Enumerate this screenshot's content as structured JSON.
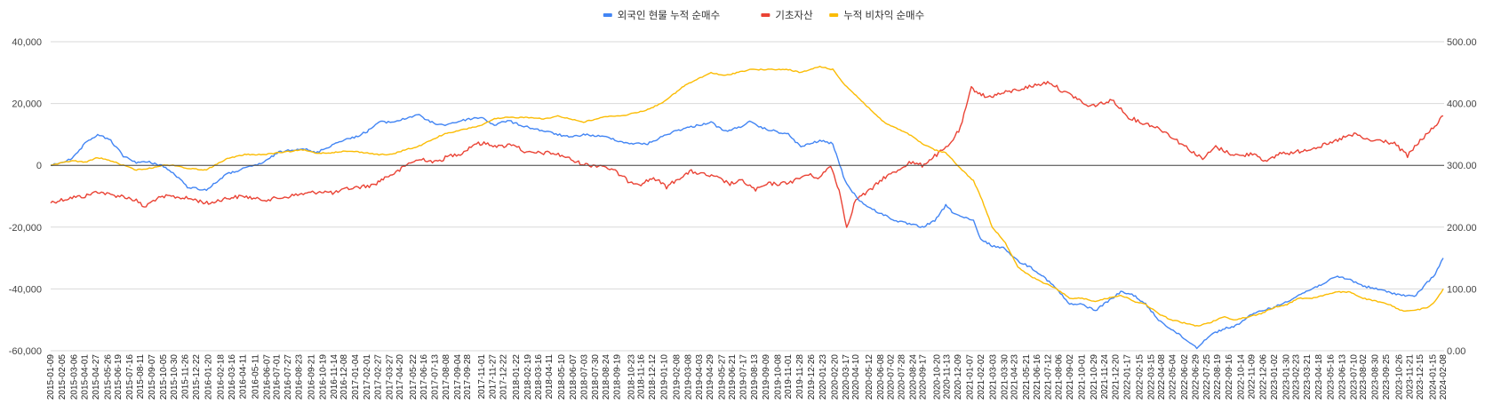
{
  "chart_data": {
    "type": "line",
    "legend_position": "top",
    "grid": true,
    "y_left": {
      "min": -60000,
      "max": 40000,
      "ticks": [
        "40,000",
        "20,000",
        "0",
        "-20,000",
        "-40,000",
        "-60,000"
      ]
    },
    "y_right": {
      "min": 0,
      "max": 500,
      "ticks": [
        "500.00",
        "400.00",
        "300.00",
        "200.00",
        "100.00",
        "0.00"
      ]
    },
    "x_tick_labels": [
      "2015-01-09",
      "2015-02-05",
      "2015-03-06",
      "2015-04-01",
      "2015-04-27",
      "2015-05-26",
      "2015-06-19",
      "2015-07-16",
      "2015-08-11",
      "2015-09-07",
      "2015-10-05",
      "2015-10-30",
      "2015-11-26",
      "2015-12-22",
      "2016-01-20",
      "2016-02-18",
      "2016-03-16",
      "2016-04-11",
      "2016-05-11",
      "2016-06-07",
      "2016-07-01",
      "2016-07-27",
      "2016-08-23",
      "2016-09-21",
      "2016-10-19",
      "2016-11-14",
      "2016-12-08",
      "2017-01-04",
      "2017-02-01",
      "2017-02-27",
      "2017-03-27",
      "2017-04-20",
      "2017-05-22",
      "2017-06-16",
      "2017-07-13",
      "2017-08-08",
      "2017-09-04",
      "2017-09-28",
      "2017-11-01",
      "2017-11-27",
      "2017-12-22",
      "2018-01-22",
      "2018-02-19",
      "2018-03-16",
      "2018-04-11",
      "2018-05-10",
      "2018-06-07",
      "2018-07-03",
      "2018-07-30",
      "2018-08-24",
      "2018-09-19",
      "2018-10-23",
      "2018-11-16",
      "2018-12-12",
      "2019-01-10",
      "2019-02-08",
      "2019-03-08",
      "2019-04-03",
      "2019-04-29",
      "2019-05-27",
      "2019-06-21",
      "2019-07-17",
      "2019-08-13",
      "2019-09-09",
      "2019-10-08",
      "2019-11-01",
      "2019-11-28",
      "2019-12-26",
      "2020-01-23",
      "2020-02-20",
      "2020-03-17",
      "2020-04-10",
      "2020-05-12",
      "2020-06-08",
      "2020-07-02",
      "2020-07-28",
      "2020-08-24",
      "2020-09-17",
      "2020-10-20",
      "2020-11-13",
      "2020-12-09",
      "2021-01-07",
      "2021-02-02",
      "2021-03-03",
      "2021-03-30",
      "2021-04-23",
      "2021-05-21",
      "2021-06-16",
      "2021-07-12",
      "2021-08-06",
      "2021-09-02",
      "2021-10-01",
      "2021-10-29",
      "2021-11-24",
      "2021-12-20",
      "2022-01-17",
      "2022-02-15",
      "2022-03-15",
      "2022-04-08",
      "2022-05-04",
      "2022-06-02",
      "2022-06-29",
      "2022-07-25",
      "2022-08-19",
      "2022-09-16",
      "2022-10-14",
      "2022-11-09",
      "2022-12-06",
      "2023-01-02",
      "2023-01-30",
      "2023-02-23",
      "2023-03-21",
      "2023-04-18",
      "2023-05-16",
      "2023-06-13",
      "2023-07-10",
      "2023-08-02",
      "2023-08-30",
      "2023-09-25",
      "2023-10-26",
      "2023-11-21",
      "2023-12-15",
      "2024-01-15",
      "2024-02-08"
    ],
    "series": [
      {
        "name": "외국인 현물 누적 순매수",
        "axis": "left",
        "color": "#4285f4",
        "x": [
          "2015-01-09",
          "2015-03-01",
          "2015-04-01",
          "2015-05-01",
          "2015-06-01",
          "2015-07-01",
          "2015-08-01",
          "2015-09-01",
          "2015-10-01",
          "2015-11-01",
          "2015-12-01",
          "2016-01-15",
          "2016-03-01",
          "2016-04-15",
          "2016-06-01",
          "2016-07-01",
          "2016-08-01",
          "2016-09-01",
          "2016-10-01",
          "2016-11-01",
          "2016-12-01",
          "2017-01-01",
          "2017-02-01",
          "2017-03-01",
          "2017-04-01",
          "2017-05-01",
          "2017-06-01",
          "2017-07-01",
          "2017-08-01",
          "2017-09-01",
          "2017-10-01",
          "2017-11-01",
          "2017-12-01",
          "2018-01-01",
          "2018-02-01",
          "2018-03-01",
          "2018-04-01",
          "2018-05-01",
          "2018-06-01",
          "2018-07-01",
          "2018-08-01",
          "2018-09-01",
          "2018-10-01",
          "2018-11-01",
          "2018-12-01",
          "2019-01-01",
          "2019-02-01",
          "2019-03-01",
          "2019-04-01",
          "2019-05-01",
          "2019-06-01",
          "2019-07-01",
          "2019-08-01",
          "2019-09-01",
          "2019-10-01",
          "2019-11-01",
          "2019-12-01",
          "2020-01-15",
          "2020-02-15",
          "2020-03-15",
          "2020-04-15",
          "2020-05-15",
          "2020-06-15",
          "2020-07-15",
          "2020-08-15",
          "2020-09-15",
          "2020-10-15",
          "2020-11-10",
          "2020-11-25",
          "2020-12-15",
          "2021-01-15",
          "2021-02-01",
          "2021-03-01",
          "2021-04-01",
          "2021-05-01",
          "2021-06-01",
          "2021-07-01",
          "2021-08-01",
          "2021-09-01",
          "2021-10-01",
          "2021-11-01",
          "2021-12-01",
          "2022-01-01",
          "2022-02-01",
          "2022-03-01",
          "2022-04-01",
          "2022-05-01",
          "2022-06-01",
          "2022-07-01",
          "2022-08-01",
          "2022-09-01",
          "2022-10-01",
          "2022-11-01",
          "2022-12-01",
          "2023-01-01",
          "2023-02-01",
          "2023-03-01",
          "2023-04-01",
          "2023-05-01",
          "2023-06-01",
          "2023-07-01",
          "2023-08-01",
          "2023-09-01",
          "2023-10-01",
          "2023-11-01",
          "2023-12-01",
          "2024-01-01",
          "2024-01-20",
          "2024-02-08"
        ],
        "y": [
          0,
          2000,
          7000,
          10000,
          8000,
          3000,
          1000,
          1000,
          0,
          -3000,
          -7000,
          -8000,
          -3000,
          -1000,
          1000,
          4000,
          5000,
          5500,
          4000,
          6000,
          8000,
          9000,
          11000,
          14000,
          14000,
          15000,
          16500,
          14000,
          13000,
          14000,
          15000,
          15500,
          13000,
          14500,
          13000,
          12000,
          11000,
          10000,
          9000,
          10000,
          9500,
          9000,
          7500,
          7000,
          7000,
          9000,
          11000,
          12000,
          13000,
          14000,
          11000,
          12000,
          14000,
          12000,
          11000,
          10000,
          6000,
          8000,
          7000,
          -5000,
          -11000,
          -14000,
          -16000,
          -18000,
          -19000,
          -20000,
          -18000,
          -13000,
          -15000,
          -16500,
          -18000,
          -24000,
          -26000,
          -27000,
          -31000,
          -33000,
          -36000,
          -40000,
          -45000,
          -45000,
          -47000,
          -44000,
          -41000,
          -42000,
          -45000,
          -50000,
          -53000,
          -56000,
          -59000,
          -55000,
          -53000,
          -52000,
          -49000,
          -47000,
          -46000,
          -44000,
          -42000,
          -40000,
          -38000,
          -36000,
          -37000,
          -39000,
          -40000,
          -41000,
          -42000,
          -42500,
          -38000,
          -35000,
          -30000
        ]
      },
      {
        "name": "기초자산",
        "axis": "right",
        "color": "#ea4335",
        "x": [
          "2015-01-09",
          "2015-03-01",
          "2015-04-01",
          "2015-05-01",
          "2015-06-01",
          "2015-07-01",
          "2015-08-01",
          "2015-08-20",
          "2015-09-15",
          "2015-10-15",
          "2015-11-15",
          "2015-12-15",
          "2016-01-20",
          "2016-02-20",
          "2016-03-15",
          "2016-04-15",
          "2016-05-15",
          "2016-06-15",
          "2016-07-15",
          "2016-08-15",
          "2016-09-15",
          "2016-10-15",
          "2016-11-15",
          "2016-12-15",
          "2017-01-15",
          "2017-02-15",
          "2017-03-15",
          "2017-04-15",
          "2017-05-15",
          "2017-06-15",
          "2017-07-15",
          "2017-08-15",
          "2017-09-15",
          "2017-10-15",
          "2017-11-15",
          "2017-12-15",
          "2018-01-15",
          "2018-02-15",
          "2018-03-15",
          "2018-04-15",
          "2018-05-15",
          "2018-06-15",
          "2018-07-15",
          "2018-08-15",
          "2018-09-15",
          "2018-10-15",
          "2018-11-15",
          "2018-12-15",
          "2019-01-15",
          "2019-02-15",
          "2019-03-15",
          "2019-04-15",
          "2019-05-15",
          "2019-06-15",
          "2019-07-15",
          "2019-08-15",
          "2019-09-15",
          "2019-10-15",
          "2019-11-15",
          "2019-12-15",
          "2020-01-15",
          "2020-02-10",
          "2020-03-01",
          "2020-03-19",
          "2020-04-10",
          "2020-05-15",
          "2020-06-15",
          "2020-07-15",
          "2020-08-15",
          "2020-09-15",
          "2020-10-15",
          "2020-11-15",
          "2020-12-15",
          "2021-01-10",
          "2021-02-15",
          "2021-03-15",
          "2021-04-15",
          "2021-05-15",
          "2021-06-15",
          "2021-07-15",
          "2021-08-15",
          "2021-09-15",
          "2021-10-15",
          "2021-11-15",
          "2021-12-15",
          "2022-01-15",
          "2022-02-15",
          "2022-03-15",
          "2022-04-15",
          "2022-05-15",
          "2022-06-15",
          "2022-07-15",
          "2022-08-15",
          "2022-09-15",
          "2022-10-15",
          "2022-11-15",
          "2022-12-15",
          "2023-01-15",
          "2023-02-15",
          "2023-03-15",
          "2023-04-15",
          "2023-05-15",
          "2023-06-15",
          "2023-07-15",
          "2023-08-15",
          "2023-09-15",
          "2023-10-15",
          "2023-11-15",
          "2023-12-15",
          "2024-01-15",
          "2024-02-08"
        ],
        "y": [
          240,
          248,
          250,
          258,
          252,
          250,
          243,
          232,
          245,
          250,
          248,
          245,
          238,
          245,
          248,
          250,
          245,
          245,
          248,
          252,
          255,
          258,
          255,
          262,
          265,
          268,
          280,
          290,
          305,
          310,
          305,
          315,
          320,
          335,
          335,
          330,
          335,
          320,
          320,
          320,
          315,
          305,
          300,
          300,
          290,
          275,
          270,
          280,
          265,
          280,
          290,
          285,
          280,
          270,
          275,
          260,
          270,
          270,
          275,
          285,
          280,
          300,
          260,
          200,
          245,
          260,
          280,
          290,
          305,
          300,
          315,
          330,
          360,
          425,
          410,
          415,
          420,
          425,
          430,
          435,
          420,
          410,
          395,
          400,
          405,
          380,
          370,
          365,
          355,
          340,
          325,
          310,
          330,
          320,
          315,
          320,
          305,
          320,
          320,
          325,
          330,
          335,
          345,
          350,
          340,
          340,
          335,
          315,
          340,
          360,
          380
        ]
      },
      {
        "name": "누적 비차익 순매수",
        "axis": "left",
        "color": "#fbbc04",
        "x": [
          "2015-01-09",
          "2015-03-01",
          "2015-04-01",
          "2015-05-01",
          "2015-06-01",
          "2015-07-01",
          "2015-08-01",
          "2015-09-01",
          "2015-10-01",
          "2015-11-01",
          "2015-12-01",
          "2016-01-15",
          "2016-03-01",
          "2016-04-15",
          "2016-06-01",
          "2016-07-01",
          "2016-08-01",
          "2016-09-01",
          "2016-10-01",
          "2016-11-01",
          "2016-12-01",
          "2017-01-01",
          "2017-02-01",
          "2017-03-01",
          "2017-04-01",
          "2017-05-01",
          "2017-06-01",
          "2017-07-01",
          "2017-08-01",
          "2017-09-01",
          "2017-10-01",
          "2017-11-01",
          "2017-12-01",
          "2018-01-01",
          "2018-02-01",
          "2018-03-01",
          "2018-04-01",
          "2018-05-01",
          "2018-06-01",
          "2018-07-01",
          "2018-08-01",
          "2018-09-01",
          "2018-10-01",
          "2018-11-01",
          "2018-12-01",
          "2019-01-01",
          "2019-02-01",
          "2019-03-01",
          "2019-04-01",
          "2019-05-01",
          "2019-06-01",
          "2019-07-01",
          "2019-08-01",
          "2019-09-01",
          "2019-10-01",
          "2019-11-01",
          "2019-12-01",
          "2020-01-15",
          "2020-02-15",
          "2020-03-15",
          "2020-04-15",
          "2020-05-15",
          "2020-06-15",
          "2020-07-15",
          "2020-08-15",
          "2020-09-15",
          "2020-10-15",
          "2020-11-10",
          "2020-11-25",
          "2020-12-15",
          "2021-01-15",
          "2021-02-01",
          "2021-03-01",
          "2021-04-01",
          "2021-05-01",
          "2021-06-01",
          "2021-07-01",
          "2021-08-01",
          "2021-09-01",
          "2021-10-01",
          "2021-11-01",
          "2021-12-01",
          "2022-01-01",
          "2022-02-01",
          "2022-03-01",
          "2022-04-01",
          "2022-05-01",
          "2022-06-01",
          "2022-07-01",
          "2022-08-01",
          "2022-09-01",
          "2022-10-01",
          "2022-11-01",
          "2022-12-01",
          "2023-01-01",
          "2023-02-01",
          "2023-03-01",
          "2023-04-01",
          "2023-05-01",
          "2023-06-01",
          "2023-07-01",
          "2023-08-01",
          "2023-09-01",
          "2023-10-01",
          "2023-11-01",
          "2023-12-01",
          "2024-01-01",
          "2024-01-20",
          "2024-02-08"
        ],
        "y": [
          0,
          1500,
          1000,
          2500,
          1500,
          0,
          -1500,
          -1000,
          0,
          0,
          -1000,
          -1500,
          2000,
          3500,
          3500,
          4000,
          4500,
          5000,
          4000,
          4000,
          4500,
          4500,
          4000,
          3500,
          3500,
          5000,
          6000,
          8000,
          10000,
          11000,
          12000,
          13000,
          15000,
          15500,
          15500,
          15500,
          15000,
          16000,
          15000,
          14000,
          15000,
          16000,
          16000,
          17000,
          18000,
          20000,
          23000,
          26000,
          28000,
          30000,
          29000,
          30000,
          31000,
          31000,
          31000,
          31000,
          30000,
          32000,
          31000,
          26000,
          22000,
          18000,
          14000,
          12000,
          10000,
          7000,
          5000,
          4000,
          2000,
          -1000,
          -5000,
          -10000,
          -20000,
          -25000,
          -33000,
          -36000,
          -38000,
          -40000,
          -43000,
          -43000,
          -44000,
          -43000,
          -42000,
          -44000,
          -45000,
          -48000,
          -50000,
          -51000,
          -52000,
          -51000,
          -49000,
          -50000,
          -49000,
          -48000,
          -46000,
          -45000,
          -43000,
          -43000,
          -42000,
          -41000,
          -41000,
          -43000,
          -44000,
          -45000,
          -47000,
          -47000,
          -46000,
          -44000,
          -40000
        ]
      }
    ]
  }
}
